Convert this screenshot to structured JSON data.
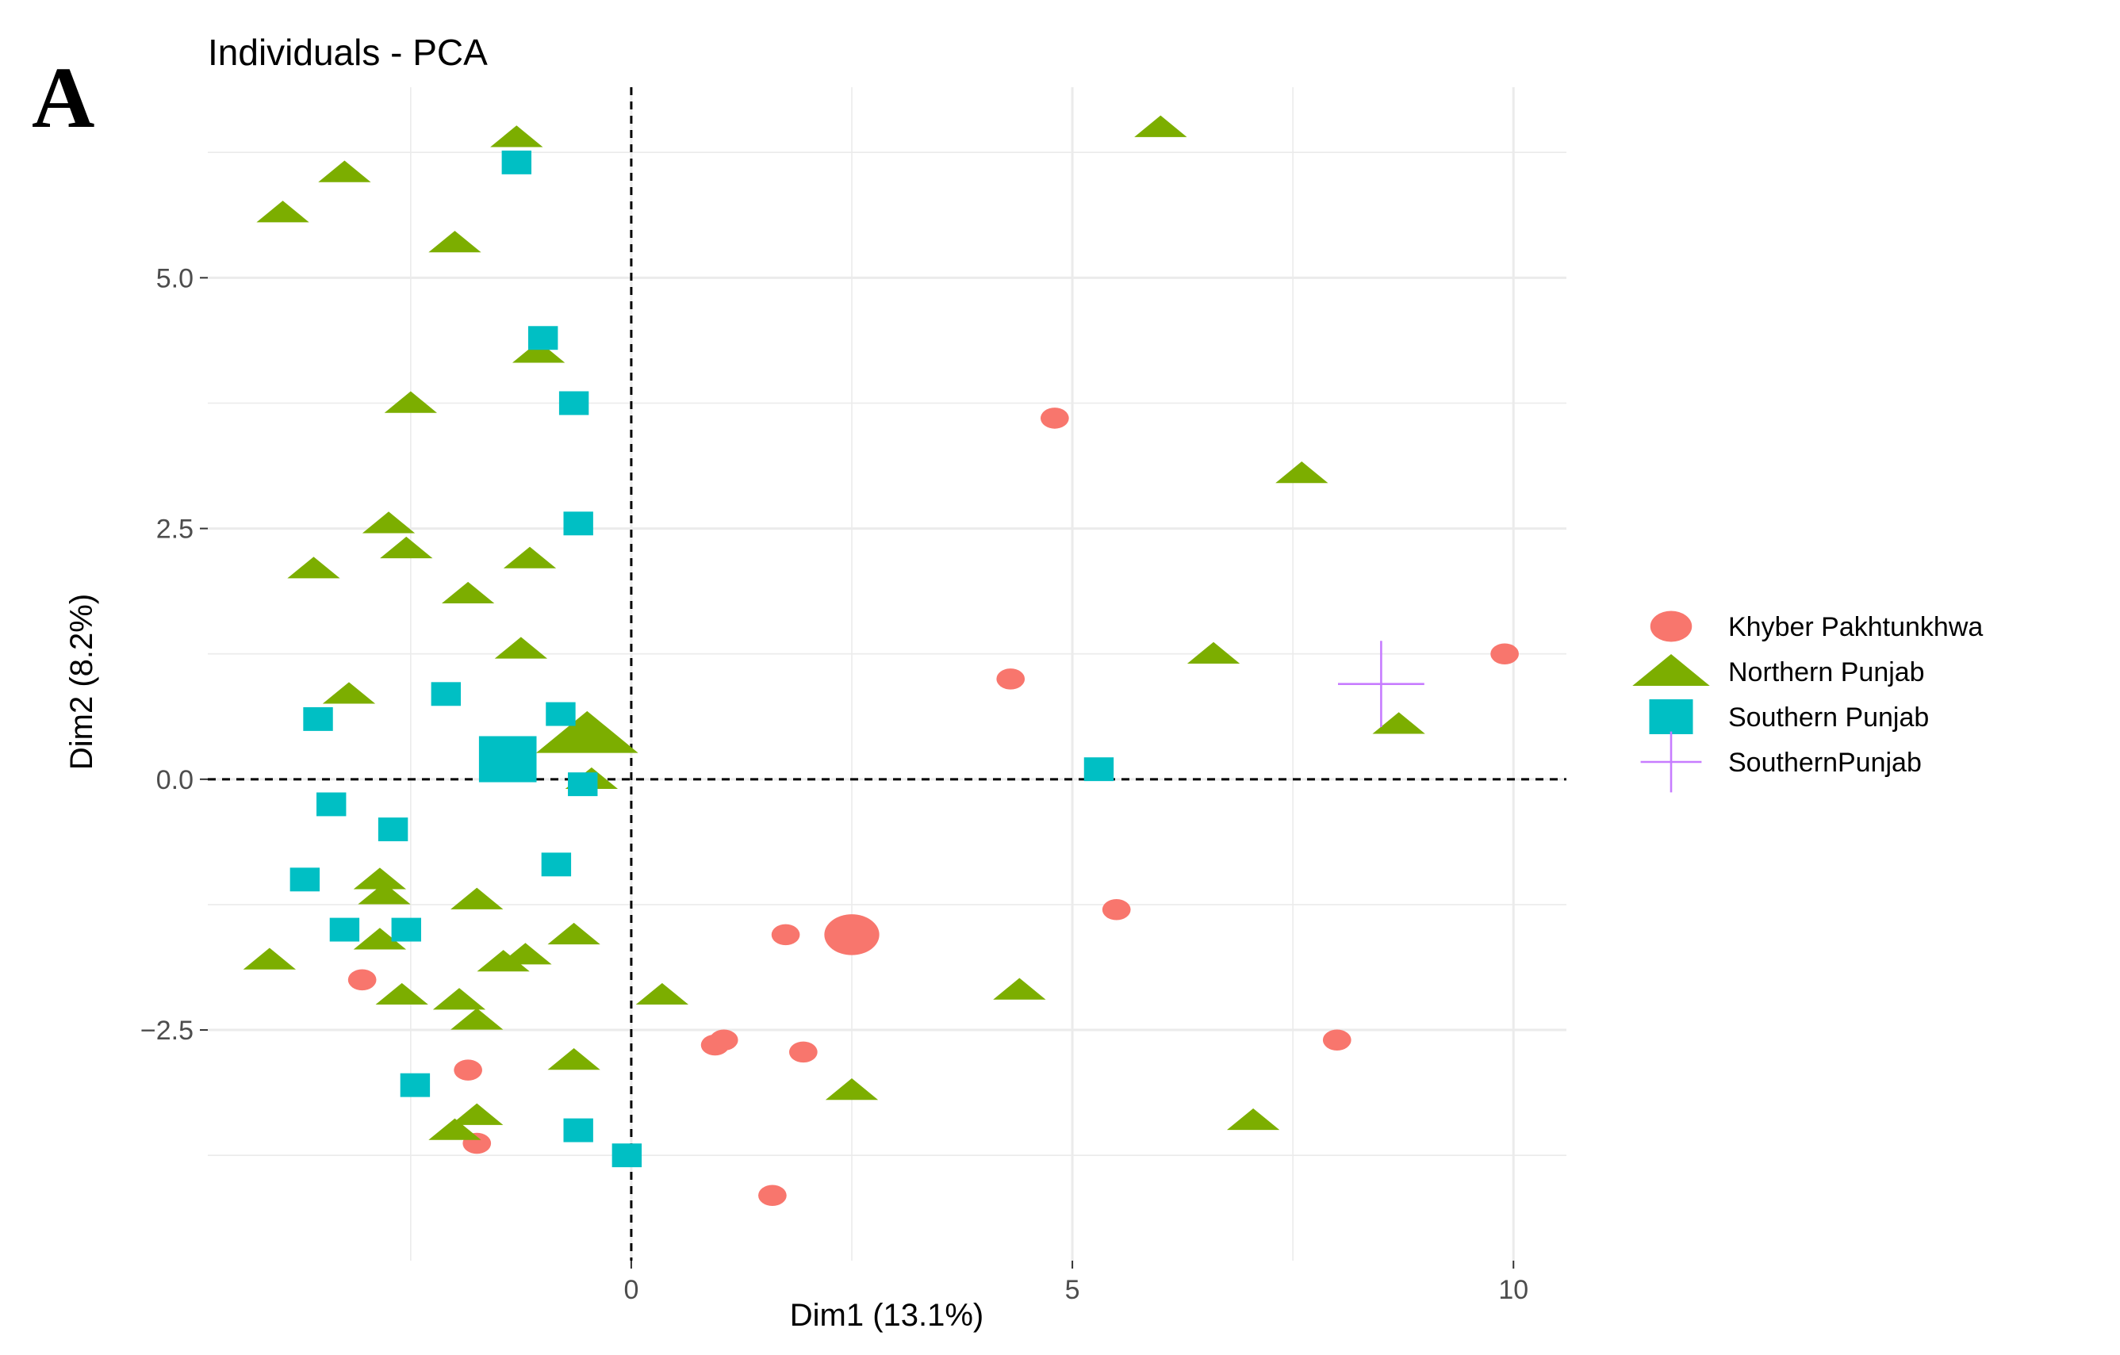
{
  "panel_label": "A",
  "chart_data": {
    "type": "scatter",
    "title": "Individuals - PCA",
    "xlabel": "Dim1 (13.1%)",
    "ylabel": "Dim2 (8.2%)",
    "xlim": [
      -4.8,
      10.6
    ],
    "ylim": [
      -4.8,
      6.9
    ],
    "x_ticks": [
      0,
      5,
      10
    ],
    "x_tick_labels": [
      "0",
      "5",
      "10"
    ],
    "y_ticks": [
      -2.5,
      0.0,
      2.5,
      5.0
    ],
    "y_tick_labels": [
      "−2.5",
      "0.0",
      "2.5",
      "5.0"
    ],
    "grid": true,
    "reference_lines": [
      {
        "axis": "x",
        "value": 0,
        "style": "dashed"
      },
      {
        "axis": "y",
        "value": 0,
        "style": "dashed"
      }
    ],
    "legend_position": "right",
    "series": [
      {
        "name": "Khyber Pakhtunkhwa",
        "shape": "circle",
        "color": "#F8766D",
        "points": [
          [
            4.8,
            3.6
          ],
          [
            4.3,
            1.0
          ],
          [
            9.9,
            1.25
          ],
          [
            5.5,
            -1.3
          ],
          [
            2.5,
            -1.55
          ],
          [
            1.75,
            -1.55
          ],
          [
            -3.05,
            -2.0
          ],
          [
            0.95,
            -2.65
          ],
          [
            1.05,
            -2.6
          ],
          [
            1.95,
            -2.72
          ],
          [
            8.0,
            -2.6
          ],
          [
            -1.85,
            -2.9
          ],
          [
            -1.75,
            -3.63
          ],
          [
            1.6,
            -4.15
          ]
        ],
        "mean_point": [
          2.5,
          -1.55
        ]
      },
      {
        "name": "Northern Punjab",
        "shape": "triangle",
        "color": "#7CAE00",
        "points": [
          [
            -1.3,
            6.4
          ],
          [
            -3.25,
            6.05
          ],
          [
            -3.95,
            5.65
          ],
          [
            -2.0,
            5.35
          ],
          [
            -1.05,
            4.25
          ],
          [
            -2.5,
            3.75
          ],
          [
            6.0,
            6.5
          ],
          [
            7.6,
            3.05
          ],
          [
            -2.75,
            2.55
          ],
          [
            -2.55,
            2.3
          ],
          [
            -3.6,
            2.1
          ],
          [
            -1.15,
            2.2
          ],
          [
            -1.85,
            1.85
          ],
          [
            -1.25,
            1.3
          ],
          [
            6.6,
            1.25
          ],
          [
            -3.2,
            0.85
          ],
          [
            8.7,
            0.55
          ],
          [
            -0.45,
            0.0
          ],
          [
            -2.85,
            -1.0
          ],
          [
            -2.8,
            -1.15
          ],
          [
            -1.75,
            -1.2
          ],
          [
            -0.65,
            -1.55
          ],
          [
            -1.2,
            -1.75
          ],
          [
            -1.45,
            -1.82
          ],
          [
            -2.85,
            -1.6
          ],
          [
            -4.1,
            -1.8
          ],
          [
            -2.6,
            -2.15
          ],
          [
            -1.95,
            -2.2
          ],
          [
            -1.75,
            -2.4
          ],
          [
            0.35,
            -2.15
          ],
          [
            4.4,
            -2.1
          ],
          [
            -0.65,
            -2.8
          ],
          [
            2.5,
            -3.1
          ],
          [
            -1.75,
            -3.35
          ],
          [
            -2.0,
            -3.5
          ],
          [
            7.05,
            -3.4
          ]
        ],
        "mean_point": [
          -0.5,
          0.45
        ]
      },
      {
        "name": "Southern Punjab",
        "shape": "square",
        "color": "#00BFC4",
        "points": [
          [
            -1.3,
            6.15
          ],
          [
            -1.0,
            4.4
          ],
          [
            -0.65,
            3.75
          ],
          [
            -0.6,
            2.55
          ],
          [
            -2.1,
            0.85
          ],
          [
            -0.8,
            0.65
          ],
          [
            -3.55,
            0.6
          ],
          [
            -0.55,
            -0.05
          ],
          [
            5.3,
            0.1
          ],
          [
            -3.4,
            -0.25
          ],
          [
            -2.7,
            -0.5
          ],
          [
            -3.7,
            -1.0
          ],
          [
            -0.85,
            -0.85
          ],
          [
            -3.25,
            -1.5
          ],
          [
            -2.55,
            -1.5
          ],
          [
            -2.45,
            -3.05
          ],
          [
            -0.6,
            -3.5
          ],
          [
            -0.05,
            -3.75
          ]
        ],
        "mean_point": [
          -1.4,
          0.2
        ]
      },
      {
        "name": "SouthernPunjab",
        "shape": "plus",
        "color": "#C77CFF",
        "points": [
          [
            8.5,
            0.95
          ]
        ]
      }
    ]
  }
}
